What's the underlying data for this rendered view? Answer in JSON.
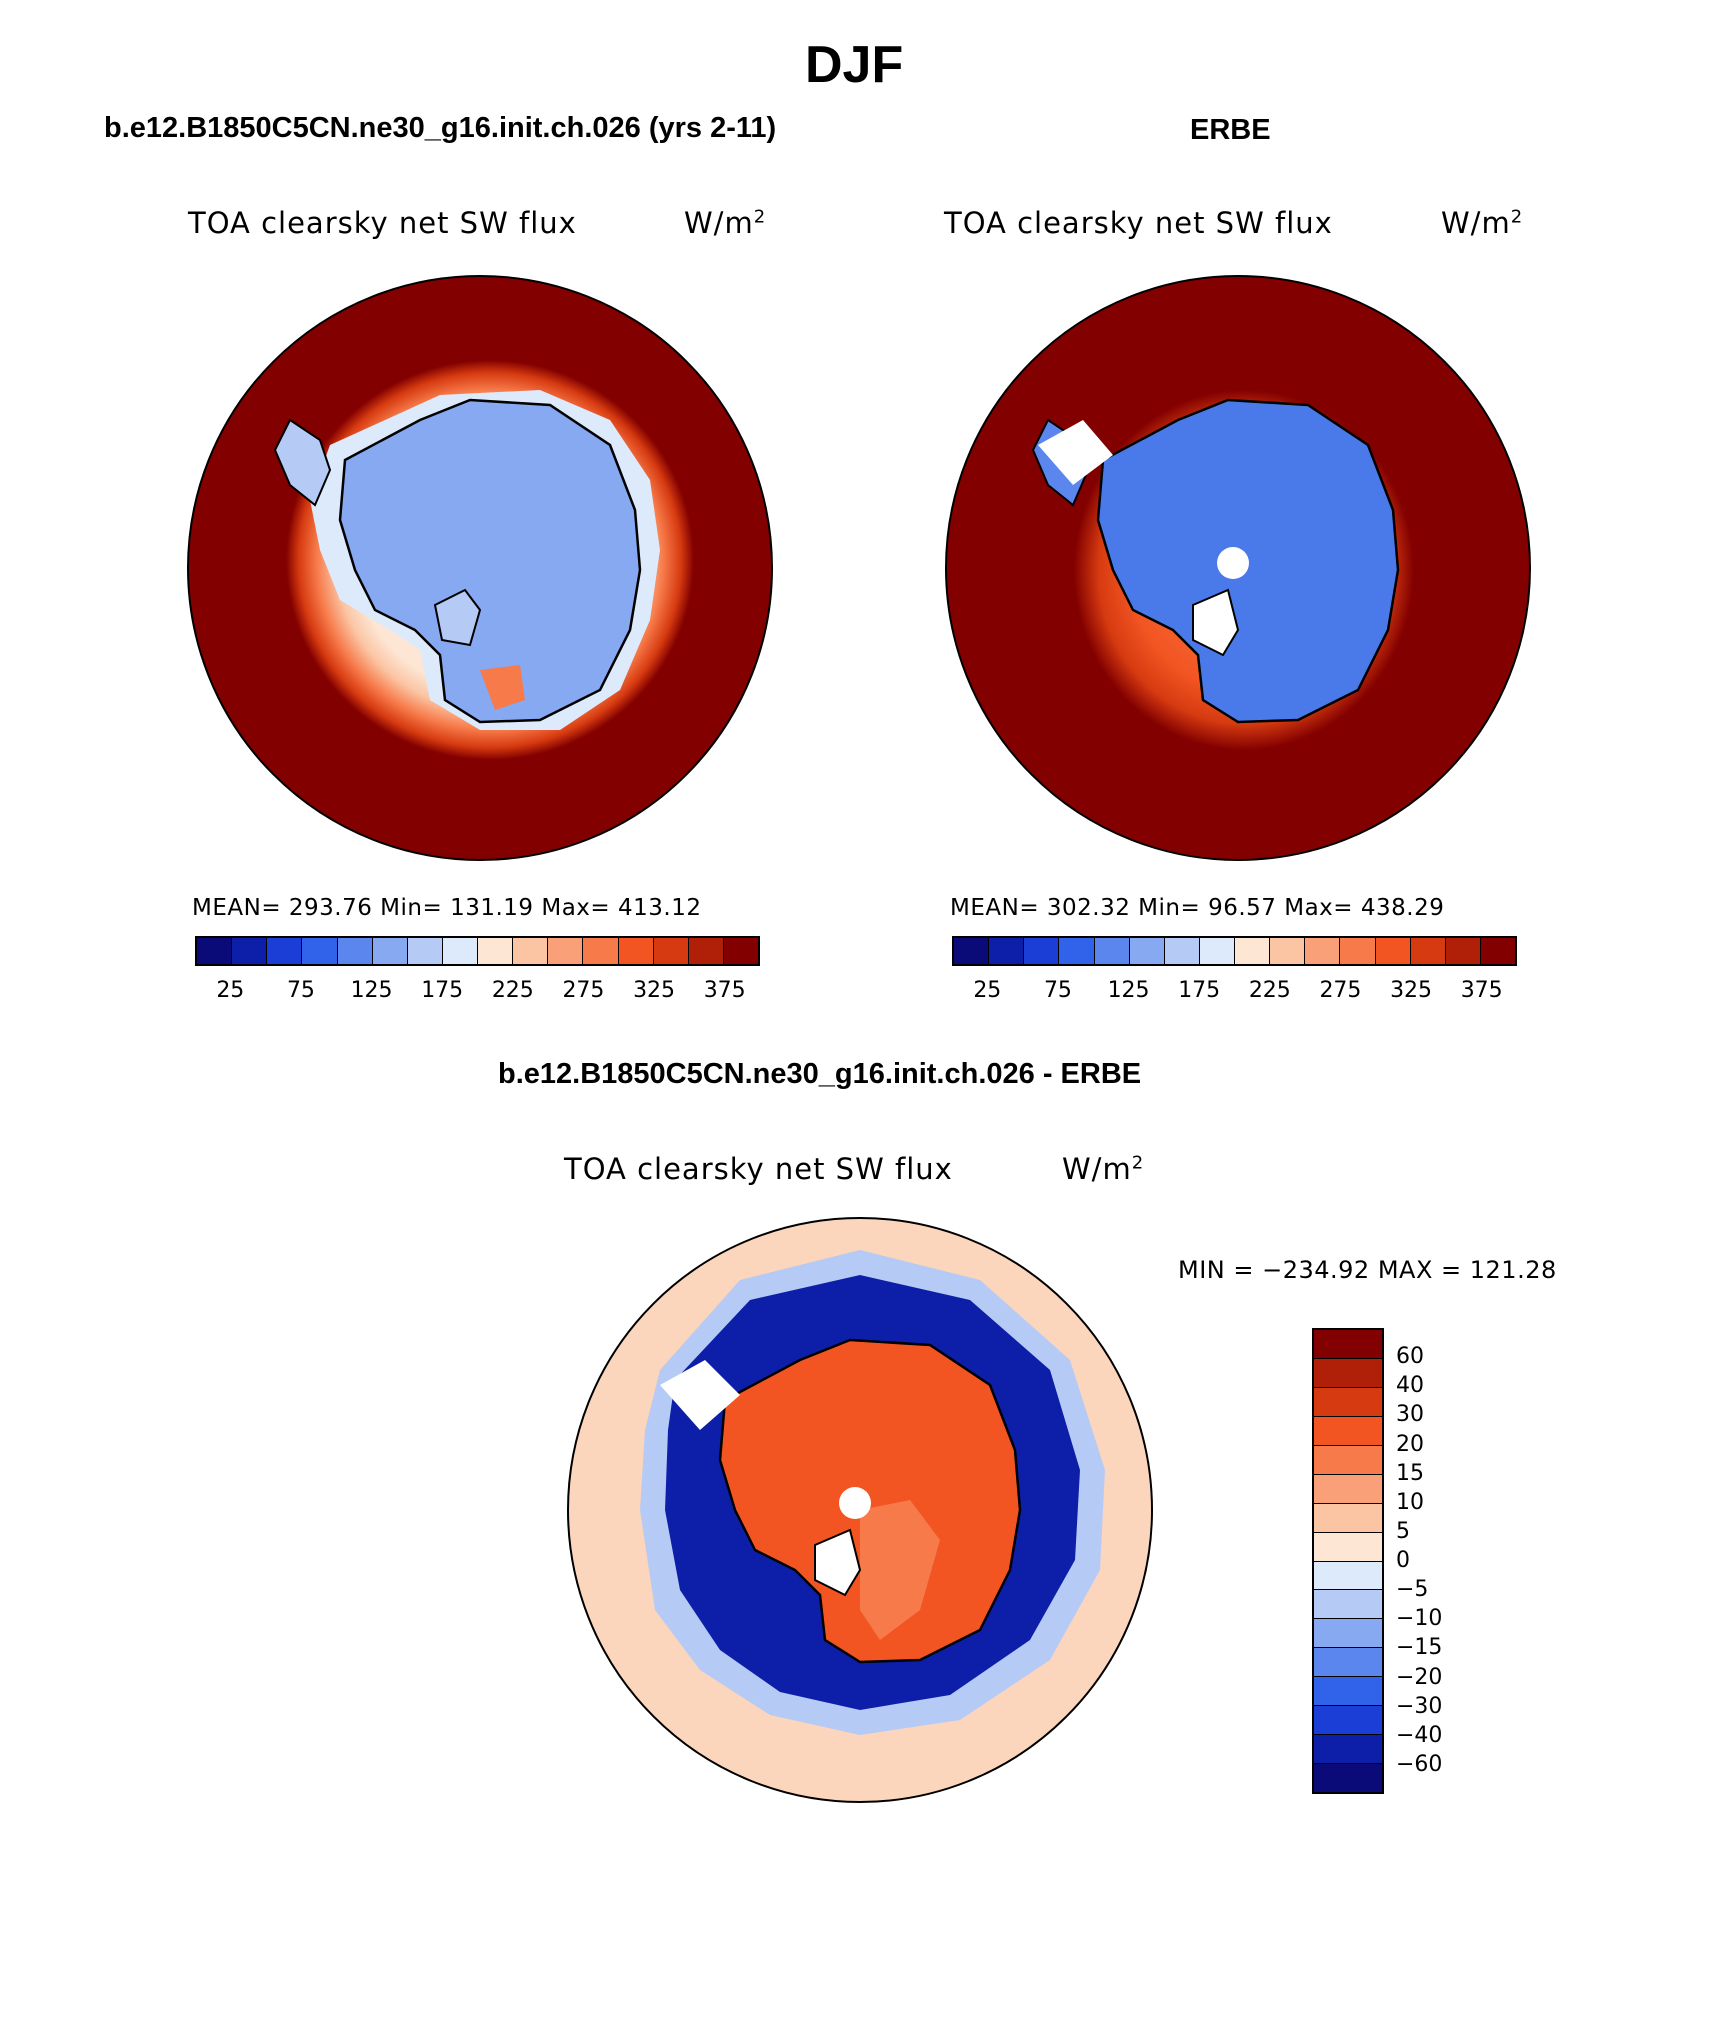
{
  "figure": {
    "season_title": "DJF"
  },
  "panels": {
    "model": {
      "title": "b.e12.B1850C5CN.ne30_g16.init.ch.026 (yrs 2-11)",
      "variable": "TOA clearsky net SW flux",
      "units_base": "W/m",
      "units_exp": "2",
      "stats": "MEAN= 293.76   Min= 131.19   Max= 413.12"
    },
    "obs": {
      "title": "ERBE",
      "variable": "TOA clearsky net SW flux",
      "units_base": "W/m",
      "units_exp": "2",
      "stats": "MEAN= 302.32   Min=  96.57   Max= 438.29"
    },
    "diff": {
      "title": "b.e12.B1850C5CN.ne30_g16.init.ch.026 - ERBE",
      "variable": "TOA clearsky net SW flux",
      "units_base": "W/m",
      "units_exp": "2",
      "stats": "MIN = −234.92 MAX = 121.28"
    }
  },
  "colorbars": {
    "abs_labels": [
      "25",
      "75",
      "125",
      "175",
      "225",
      "275",
      "325",
      "375"
    ],
    "abs_colors": [
      "#0a0a78",
      "#0d1fa8",
      "#1a3ed6",
      "#3162ea",
      "#5a86ee",
      "#86a9f2",
      "#b5cbf6",
      "#ddeafb",
      "#fde6d4",
      "#fbc5a4",
      "#f9a078",
      "#f77a4a",
      "#f25522",
      "#d63a10",
      "#b01f08",
      "#820000"
    ],
    "diff_labels": [
      "60",
      "40",
      "30",
      "20",
      "15",
      "10",
      "5",
      "0",
      "−5",
      "−10",
      "−15",
      "−20",
      "−30",
      "−40",
      "−60"
    ],
    "diff_colors": [
      "#820000",
      "#b01f08",
      "#d63a10",
      "#f25522",
      "#f77a4a",
      "#f9a078",
      "#fbc5a4",
      "#fde6d4",
      "#ddeafb",
      "#b5cbf6",
      "#86a9f2",
      "#5a86ee",
      "#3162ea",
      "#1a3ed6",
      "#0d1fa8",
      "#0a0a78"
    ]
  },
  "colors": {
    "deep_red": "#820000",
    "antarctic_blue_model": "#86a9f2",
    "antarctic_blue_obs": "#4a7aea",
    "diff_ocean_blue": "#0d1fa8",
    "diff_land_red": "#f25522"
  }
}
